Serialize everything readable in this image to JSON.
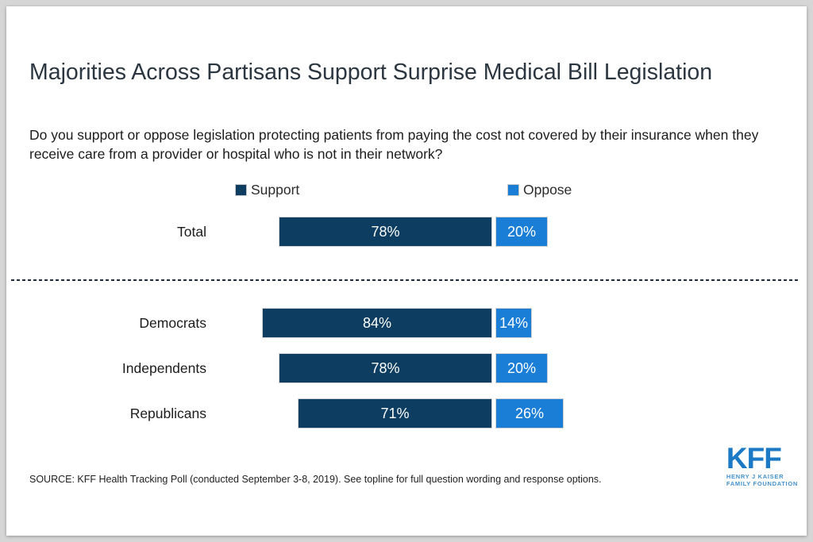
{
  "title": "Majorities Across Partisans Support Surprise Medical Bill Legislation",
  "subtitle": "Do you support or oppose legislation protecting patients from paying the cost not covered by their insurance when they receive care from a provider or hospital who is not in their network?",
  "source": "SOURCE: KFF Health Tracking Poll (conducted September 3-8, 2019). See topline for full question wording and response options.",
  "logo": {
    "text": "KFF",
    "line1": "HENRY J KAISER",
    "line2": "FAMILY FOUNDATION",
    "color": "#1b79c5",
    "sub_color": "#4593cd"
  },
  "colors": {
    "support": "#0d3e62",
    "oppose": "#1b7ed6",
    "bar_border": "#d2d2d2",
    "divider": "#232e3a",
    "background": "#ffffff",
    "frame": "#d6d6d6"
  },
  "chart_data": {
    "type": "bar",
    "orientation": "horizontal-stacked-diverging",
    "title": "Majorities Across Partisans Support Surprise Medical Bill Legislation",
    "categories": [
      "Total",
      "Democrats",
      "Independents",
      "Republicans"
    ],
    "series": [
      {
        "name": "Support",
        "color": "#0d3e62",
        "values": [
          78,
          84,
          78,
          71
        ]
      },
      {
        "name": "Oppose",
        "color": "#1b7ed6",
        "values": [
          20,
          14,
          20,
          26
        ]
      }
    ],
    "value_suffix": "%",
    "data_labels": "inside-white",
    "legend_position": "top",
    "grid": false,
    "notes": "Total row separated from partisan rows by a horizontal dashed divider",
    "groups": {
      "above_divider": [
        "Total"
      ],
      "below_divider": [
        "Democrats",
        "Independents",
        "Republicans"
      ]
    }
  }
}
